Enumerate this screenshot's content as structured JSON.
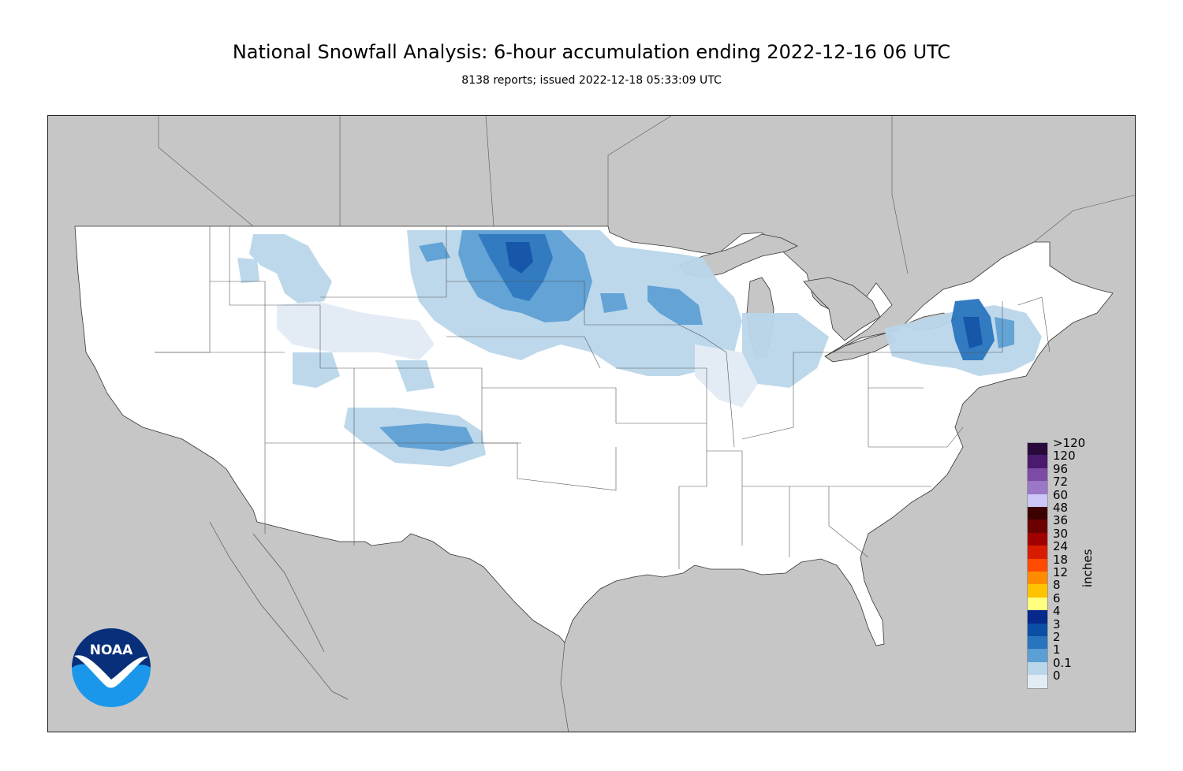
{
  "header": {
    "title": "National Snowfall Analysis: 6-hour accumulation ending 2022-12-16 06 UTC",
    "subtitle": "8138 reports; issued 2022-12-18 05:33:09 UTC"
  },
  "logo": {
    "text": "NOAA",
    "icon": "noaa-logo-icon",
    "colors": {
      "sky": "#0a2f7a",
      "sea": "#1a97ea",
      "bird": "#ffffff"
    }
  },
  "colors": {
    "land": "#ffffff",
    "outside_area": "#c6c6c6",
    "water": "#c6c6c6",
    "borders": "#555555"
  },
  "legend": {
    "units": "inches",
    "bins": [
      {
        "label": ">120",
        "color": "#2a0a3d"
      },
      {
        "label": "120",
        "color": "#4a1a6e"
      },
      {
        "label": "96",
        "color": "#7b4ba6"
      },
      {
        "label": "72",
        "color": "#9a77c7"
      },
      {
        "label": "60",
        "color": "#cbc6f7"
      },
      {
        "label": "48",
        "color": "#3d0000"
      },
      {
        "label": "36",
        "color": "#6b0000"
      },
      {
        "label": "30",
        "color": "#a00000"
      },
      {
        "label": "24",
        "color": "#d91c00"
      },
      {
        "label": "18",
        "color": "#ff4a00"
      },
      {
        "label": "12",
        "color": "#ff8c00"
      },
      {
        "label": "8",
        "color": "#ffc300"
      },
      {
        "label": "6",
        "color": "#ffff80"
      },
      {
        "label": "4",
        "color": "#08298c"
      },
      {
        "label": "3",
        "color": "#0a4fa5"
      },
      {
        "label": "2",
        "color": "#2874be"
      },
      {
        "label": "1",
        "color": "#5b9fd4"
      },
      {
        "label": "0.1",
        "color": "#bad6ea"
      },
      {
        "label": "0",
        "color": "#e2ecf5"
      },
      {
        "label": "",
        "color": "#ffffff"
      }
    ]
  },
  "snow_regions": [
    {
      "name": "northern-plains-core",
      "level": "2",
      "color": "#2874be"
    },
    {
      "name": "northern-plains-outer",
      "level": "1",
      "color": "#5b9fd4"
    },
    {
      "name": "upper-midwest",
      "level": "0.1",
      "color": "#bad6ea"
    },
    {
      "name": "new-york-core",
      "level": "2",
      "color": "#2874be"
    },
    {
      "name": "colorado-front",
      "level": "0.1",
      "color": "#bad6ea"
    }
  ]
}
